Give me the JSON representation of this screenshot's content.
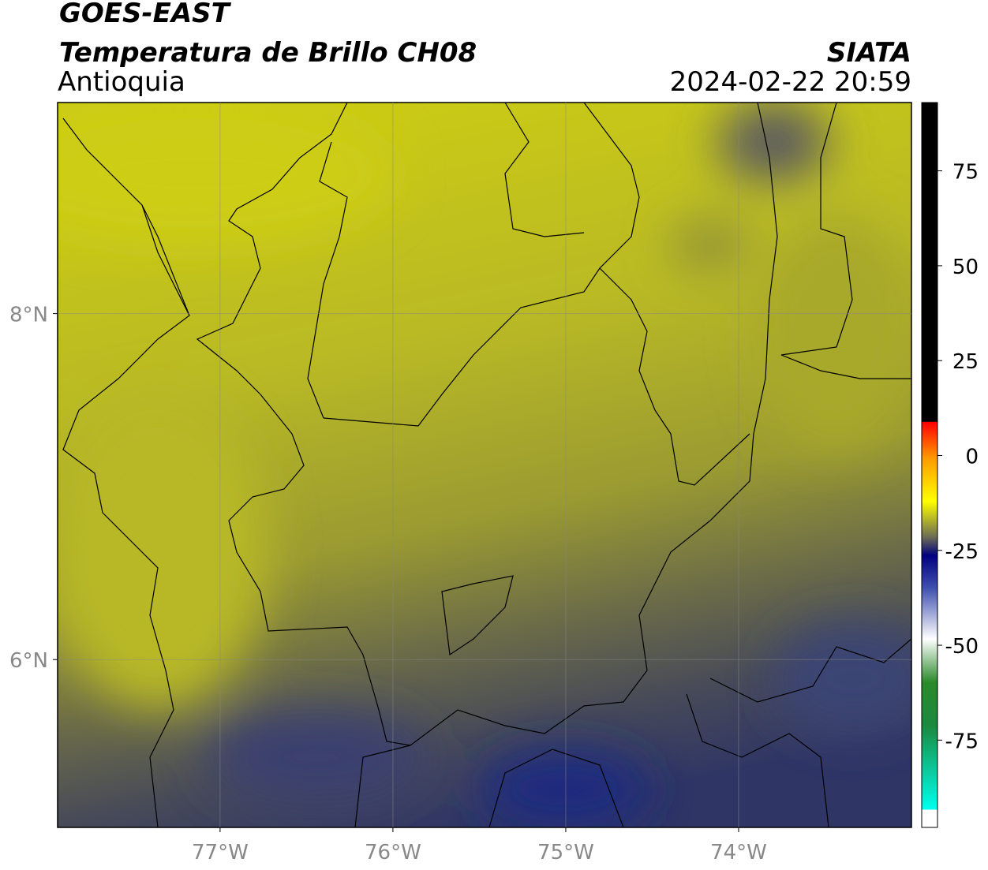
{
  "map": {
    "title": "GOES-EAST",
    "subtitle": "Temperatura de Brillo CH08",
    "region": "Antioquia",
    "source": "SIATA",
    "timestamp": "2024-02-22 20:59",
    "xlim": [
      -77.94,
      -73.0
    ],
    "ylim": [
      5.03,
      9.22
    ],
    "xticks": [
      {
        "value": -77,
        "label": "77°W"
      },
      {
        "value": -76,
        "label": "76°W"
      },
      {
        "value": -75,
        "label": "75°W"
      },
      {
        "value": -74,
        "label": "74°W"
      }
    ],
    "yticks": [
      {
        "value": 8,
        "label": "8°N"
      },
      {
        "value": 6,
        "label": "6°N"
      }
    ],
    "grid": true
  },
  "colorbar": {
    "lim": [
      -98,
      93
    ],
    "ticks": [
      75,
      50,
      25,
      0,
      -25,
      -50,
      -75
    ]
  }
}
